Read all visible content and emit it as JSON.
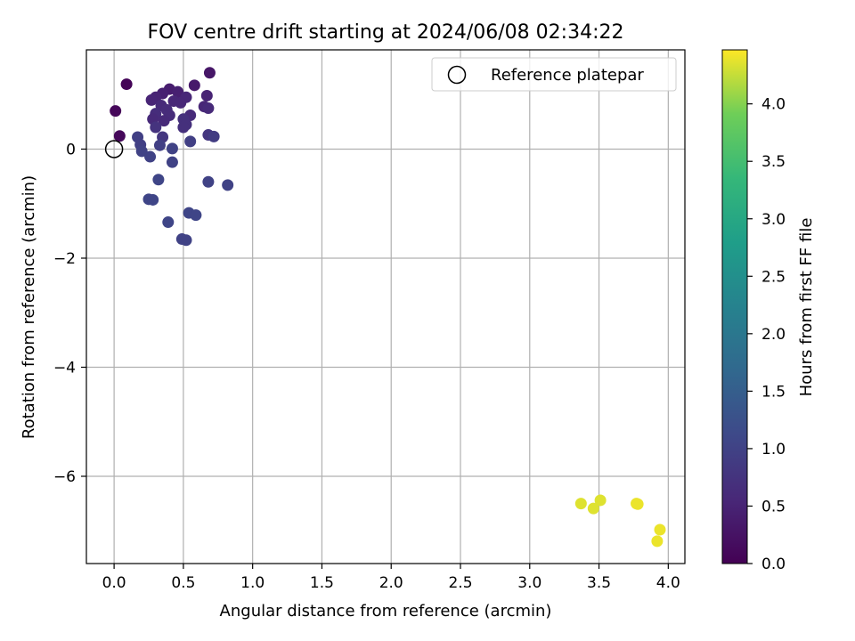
{
  "chart_data": {
    "type": "scatter",
    "title": "FOV centre drift starting at 2024/06/08 02:34:22",
    "xlabel": "Angular distance from reference (arcmin)",
    "ylabel": "Rotation from reference (arcmin)",
    "xlim": [
      -0.2,
      4.12
    ],
    "ylim": [
      -7.6,
      1.82
    ],
    "xticks": [
      0.0,
      0.5,
      1.0,
      1.5,
      2.0,
      2.5,
      3.0,
      3.5,
      4.0
    ],
    "xtick_labels": [
      "0.0",
      "0.5",
      "1.0",
      "1.5",
      "2.0",
      "2.5",
      "3.0",
      "3.5",
      "4.0"
    ],
    "yticks": [
      0,
      -2,
      -4,
      -6
    ],
    "ytick_labels": [
      "0",
      "−2",
      "−4",
      "−6"
    ],
    "grid": true,
    "legend": {
      "position": "top-right",
      "entries": [
        "Reference platepar"
      ]
    },
    "reference_point": {
      "x": 0.0,
      "y": 0.0
    },
    "colorbar": {
      "label": "Hours from first FF file",
      "colormap": "viridis",
      "range": [
        0.0,
        4.47
      ],
      "ticks": [
        0.0,
        0.5,
        1.0,
        1.5,
        2.0,
        2.5,
        3.0,
        3.5,
        4.0
      ],
      "tick_labels": [
        "0.0",
        "0.5",
        "1.0",
        "1.5",
        "2.0",
        "2.5",
        "3.0",
        "3.5",
        "4.0"
      ]
    },
    "points": [
      {
        "x": 0.09,
        "y": 1.19,
        "c": 0.05
      },
      {
        "x": 0.01,
        "y": 0.7,
        "c": 0.08
      },
      {
        "x": 0.04,
        "y": 0.24,
        "c": 0.1
      },
      {
        "x": 0.69,
        "y": 1.4,
        "c": 0.3
      },
      {
        "x": 0.58,
        "y": 1.17,
        "c": 0.35
      },
      {
        "x": 0.4,
        "y": 1.1,
        "c": 0.4
      },
      {
        "x": 0.46,
        "y": 1.05,
        "c": 0.45
      },
      {
        "x": 0.35,
        "y": 1.02,
        "c": 0.45
      },
      {
        "x": 0.3,
        "y": 0.95,
        "c": 0.5
      },
      {
        "x": 0.52,
        "y": 0.95,
        "c": 0.55
      },
      {
        "x": 0.27,
        "y": 0.9,
        "c": 0.52
      },
      {
        "x": 0.67,
        "y": 0.98,
        "c": 0.5
      },
      {
        "x": 0.43,
        "y": 0.88,
        "c": 0.55
      },
      {
        "x": 0.34,
        "y": 0.8,
        "c": 0.6
      },
      {
        "x": 0.48,
        "y": 0.85,
        "c": 0.55
      },
      {
        "x": 0.38,
        "y": 0.72,
        "c": 0.62
      },
      {
        "x": 0.65,
        "y": 0.78,
        "c": 0.55
      },
      {
        "x": 0.68,
        "y": 0.75,
        "c": 0.6
      },
      {
        "x": 0.3,
        "y": 0.65,
        "c": 0.65
      },
      {
        "x": 0.4,
        "y": 0.62,
        "c": 0.62
      },
      {
        "x": 0.55,
        "y": 0.62,
        "c": 0.6
      },
      {
        "x": 0.28,
        "y": 0.55,
        "c": 0.6
      },
      {
        "x": 0.5,
        "y": 0.55,
        "c": 0.7
      },
      {
        "x": 0.36,
        "y": 0.52,
        "c": 0.6
      },
      {
        "x": 0.52,
        "y": 0.45,
        "c": 0.7
      },
      {
        "x": 0.3,
        "y": 0.4,
        "c": 0.75
      },
      {
        "x": 0.5,
        "y": 0.4,
        "c": 0.7
      },
      {
        "x": 0.68,
        "y": 0.26,
        "c": 0.8
      },
      {
        "x": 0.72,
        "y": 0.23,
        "c": 0.9
      },
      {
        "x": 0.35,
        "y": 0.22,
        "c": 0.8
      },
      {
        "x": 0.17,
        "y": 0.22,
        "c": 0.95
      },
      {
        "x": 0.55,
        "y": 0.14,
        "c": 0.95
      },
      {
        "x": 0.19,
        "y": 0.08,
        "c": 0.95
      },
      {
        "x": 0.33,
        "y": 0.07,
        "c": 0.95
      },
      {
        "x": 0.42,
        "y": 0.01,
        "c": 1.0
      },
      {
        "x": 0.2,
        "y": -0.04,
        "c": 1.0
      },
      {
        "x": 0.26,
        "y": -0.14,
        "c": 1.0
      },
      {
        "x": 0.42,
        "y": -0.24,
        "c": 1.0
      },
      {
        "x": 0.32,
        "y": -0.56,
        "c": 1.05
      },
      {
        "x": 0.68,
        "y": -0.6,
        "c": 1.0
      },
      {
        "x": 0.82,
        "y": -0.66,
        "c": 1.0
      },
      {
        "x": 0.25,
        "y": -0.92,
        "c": 1.05
      },
      {
        "x": 0.28,
        "y": -0.93,
        "c": 1.05
      },
      {
        "x": 0.54,
        "y": -1.17,
        "c": 1.05
      },
      {
        "x": 0.59,
        "y": -1.21,
        "c": 1.05
      },
      {
        "x": 0.39,
        "y": -1.34,
        "c": 1.05
      },
      {
        "x": 0.49,
        "y": -1.65,
        "c": 1.0
      },
      {
        "x": 0.52,
        "y": -1.67,
        "c": 1.0
      },
      {
        "x": 3.37,
        "y": -6.5,
        "c": 4.35
      },
      {
        "x": 3.46,
        "y": -6.59,
        "c": 4.35
      },
      {
        "x": 3.51,
        "y": -6.44,
        "c": 4.35
      },
      {
        "x": 3.77,
        "y": -6.5,
        "c": 4.4
      },
      {
        "x": 3.78,
        "y": -6.51,
        "c": 4.4
      },
      {
        "x": 3.94,
        "y": -6.98,
        "c": 4.4
      },
      {
        "x": 3.92,
        "y": -7.19,
        "c": 4.4
      }
    ]
  }
}
